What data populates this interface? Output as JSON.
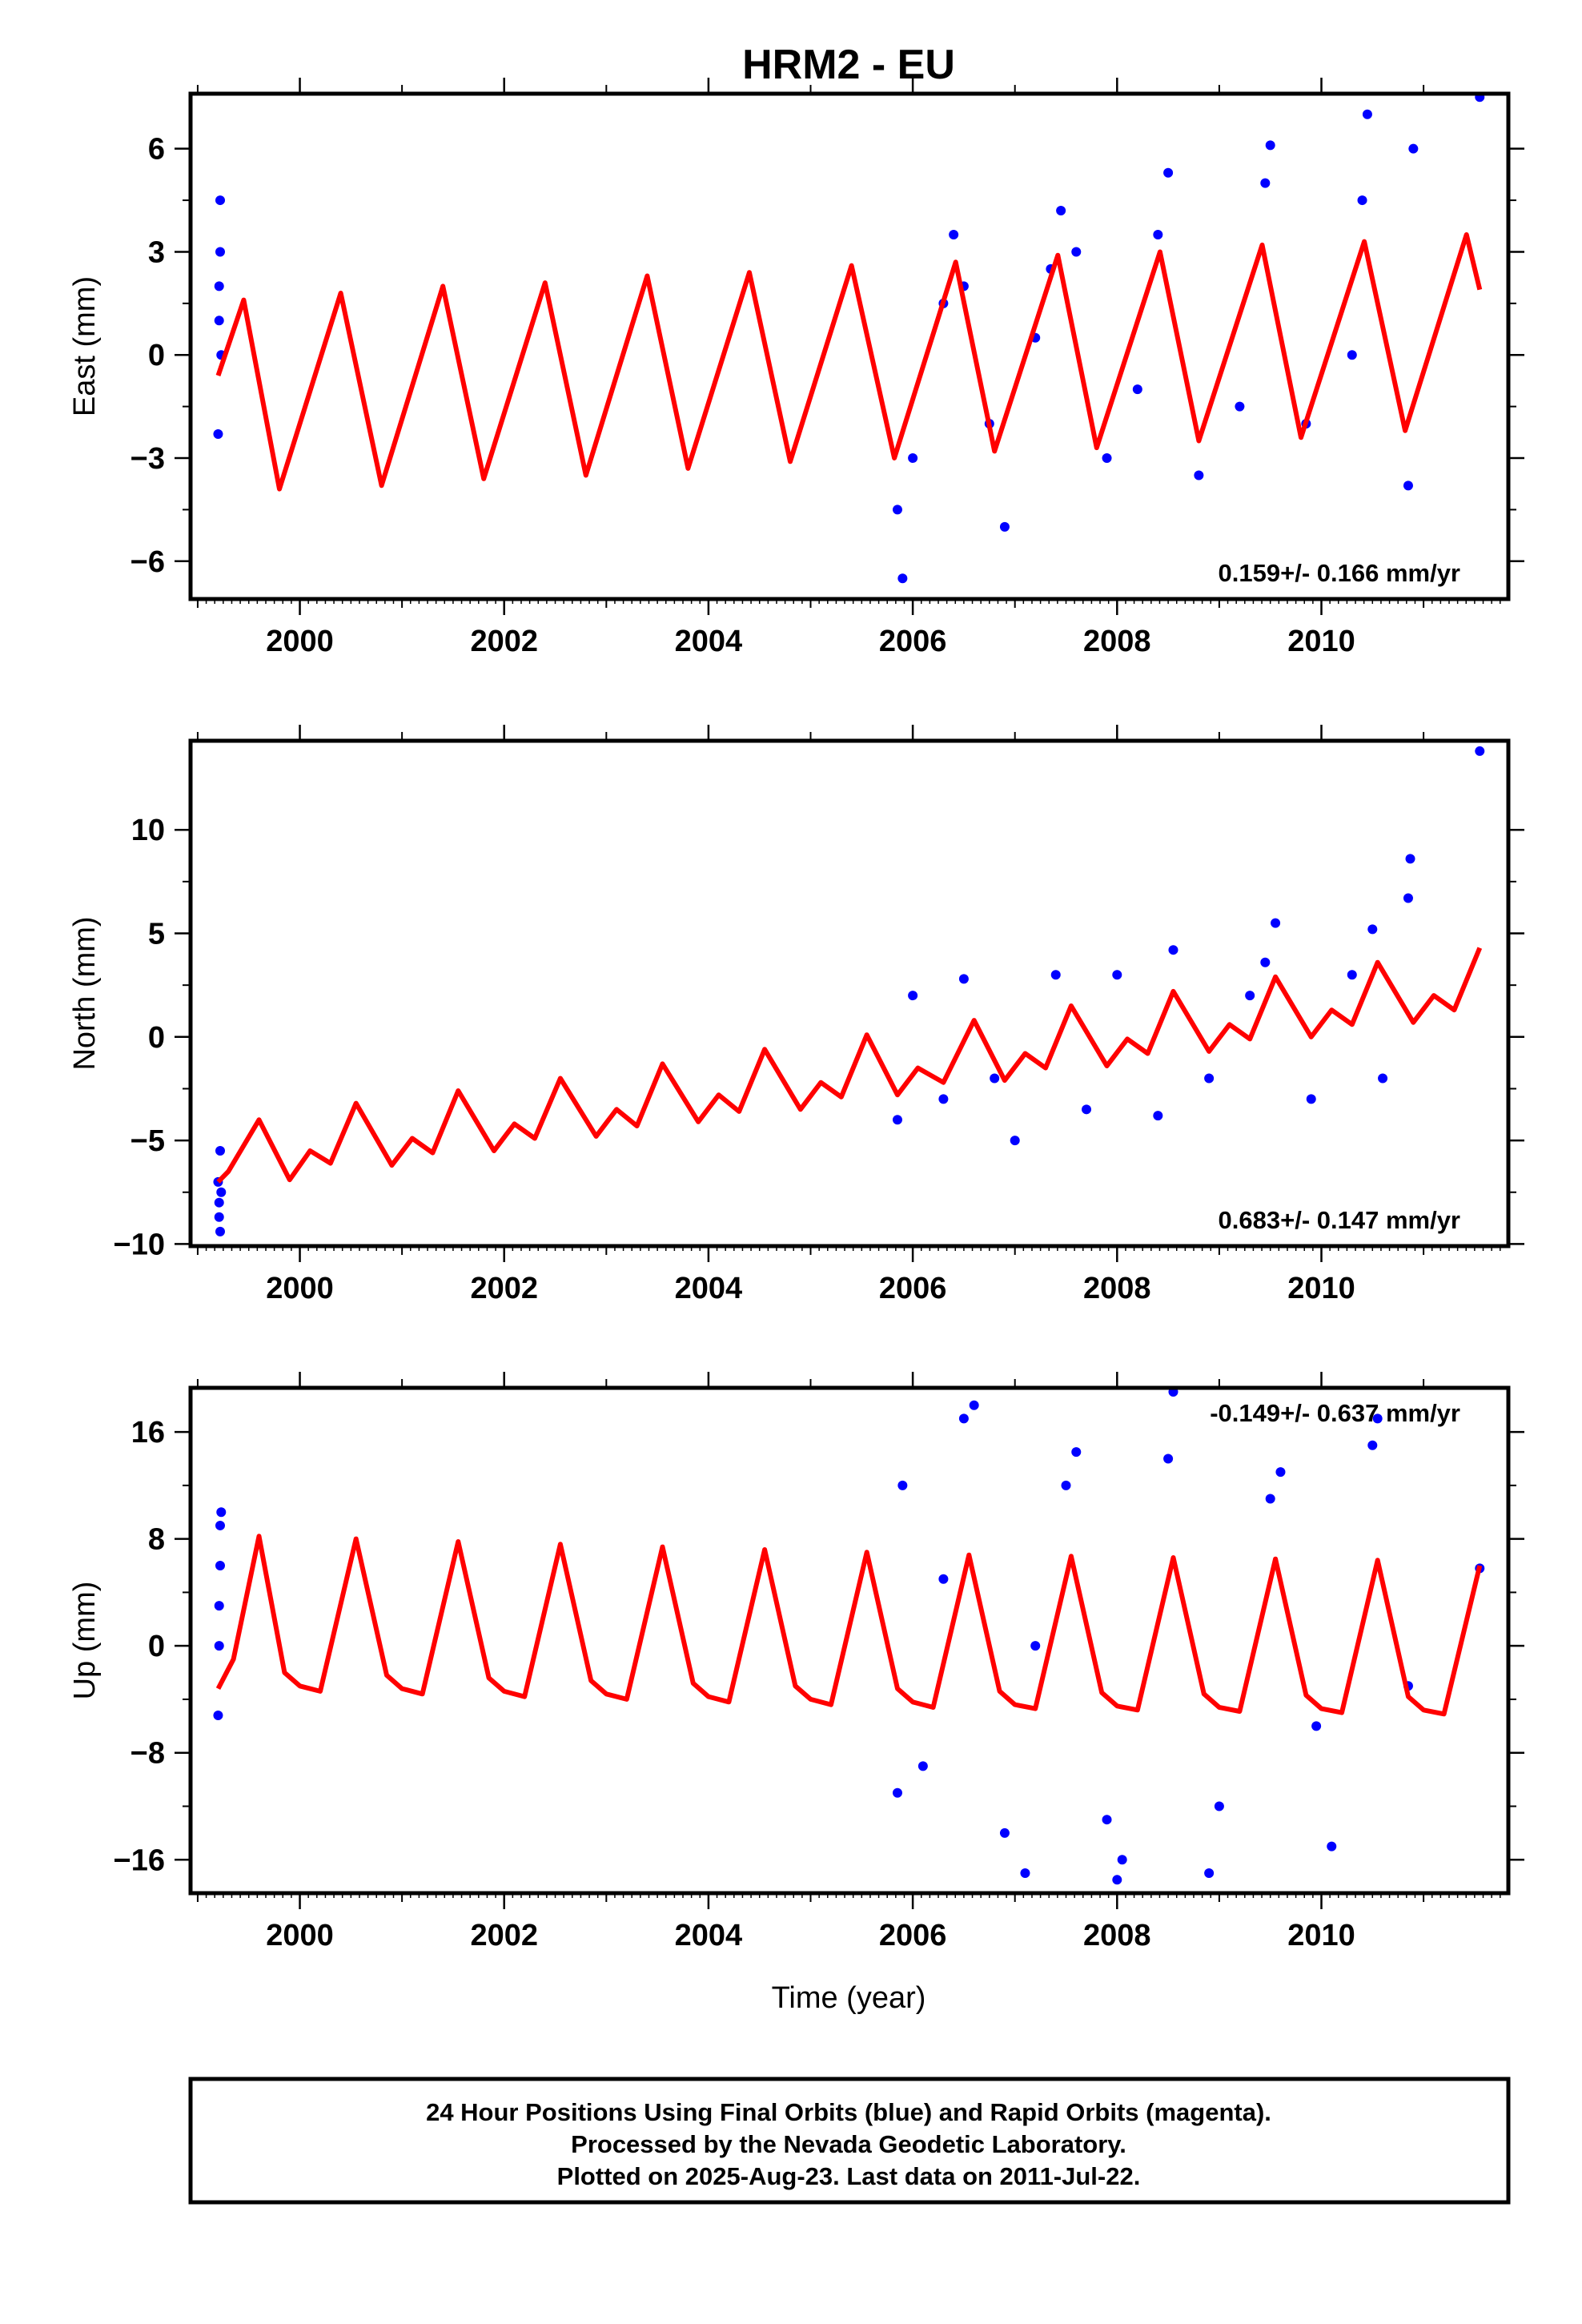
{
  "chart_data": {
    "type": "scatter",
    "title": "HRM2 - EU",
    "xlabel": "Time (year)",
    "xlim": [
      1998.93,
      2011.83
    ],
    "x_ticks": [
      2000,
      2002,
      2004,
      2006,
      2008,
      2010
    ],
    "point_color": "#0000ff",
    "model_color": "#ff0000",
    "footer_lines": [
      "24 Hour Positions Using Final Orbits (blue) and Rapid Orbits (magenta).",
      "Processed by the Nevada Geodetic Laboratory.",
      "Plotted on 2025-Aug-23. Last data on 2011-Jul-22."
    ],
    "panels": [
      {
        "id": "east",
        "ylabel": "East (mm)",
        "ylim": [
          -7.1,
          7.6
        ],
        "y_ticks": [
          -6,
          -3,
          0,
          3,
          6
        ],
        "y_tick_labels": [
          "−6",
          "−3",
          "0",
          "3",
          "6"
        ],
        "rate_label": "0.159+/- 0.166 mm/yr",
        "rate_position": "bottom-right",
        "series": [
          {
            "type": "scatter",
            "x": [
              1999.2,
              1999.21,
              1999.21,
              1999.22,
              1999.22,
              1999.23,
              2005.85,
              2005.9,
              2006.0,
              2006.3,
              2006.4,
              2006.5,
              2006.75,
              2006.9,
              2007.2,
              2007.35,
              2007.45,
              2007.6,
              2007.9,
              2008.2,
              2008.4,
              2008.5,
              2008.8,
              2009.2,
              2009.45,
              2009.5,
              2009.85,
              2010.3,
              2010.4,
              2010.45,
              2010.85,
              2010.9,
              2011.55
            ],
            "y": [
              -2.3,
              1.0,
              2.0,
              3.0,
              4.5,
              0.0,
              -4.5,
              -6.5,
              -3.0,
              1.5,
              3.5,
              2.0,
              -2.0,
              -5.0,
              0.5,
              2.5,
              4.2,
              3.0,
              -3.0,
              -1.0,
              3.5,
              5.3,
              -3.5,
              -1.5,
              5.0,
              6.1,
              -2.0,
              0.0,
              4.5,
              7.0,
              -3.8,
              6.0,
              7.5
            ]
          },
          {
            "type": "line",
            "x": [
              1999.2,
              1999.45,
              1999.8,
              2000.4,
              2000.8,
              2001.4,
              2001.8,
              2002.4,
              2002.8,
              2003.4,
              2003.8,
              2004.4,
              2004.8,
              2005.4,
              2005.82,
              2006.42,
              2006.8,
              2007.42,
              2007.8,
              2008.42,
              2008.8,
              2009.42,
              2009.8,
              2010.42,
              2010.82,
              2011.42,
              2011.55
            ],
            "y": [
              -0.6,
              1.6,
              -3.9,
              1.8,
              -3.8,
              2.0,
              -3.6,
              2.1,
              -3.5,
              2.3,
              -3.3,
              2.4,
              -3.1,
              2.6,
              -3.0,
              2.7,
              -2.8,
              2.9,
              -2.7,
              3.0,
              -2.5,
              3.2,
              -2.4,
              3.3,
              -2.2,
              3.5,
              1.9
            ]
          }
        ]
      },
      {
        "id": "north",
        "ylabel": "North (mm)",
        "ylim": [
          -10.1,
          14.3
        ],
        "y_ticks": [
          -10,
          -5,
          0,
          5,
          10
        ],
        "y_tick_labels": [
          "−10",
          "−5",
          "0",
          "5",
          "10"
        ],
        "rate_label": "0.683+/- 0.147 mm/yr",
        "rate_position": "bottom-right",
        "series": [
          {
            "type": "scatter",
            "x": [
              1999.2,
              1999.21,
              1999.21,
              1999.22,
              1999.22,
              1999.23,
              2005.85,
              2006.0,
              2006.3,
              2006.5,
              2006.8,
              2007.0,
              2007.4,
              2007.7,
              2008.0,
              2008.4,
              2008.55,
              2008.9,
              2009.3,
              2009.45,
              2009.55,
              2009.9,
              2010.3,
              2010.5,
              2010.6,
              2010.85,
              2010.87,
              2011.55
            ],
            "y": [
              -7.0,
              -8.0,
              -8.7,
              -9.4,
              -5.5,
              -7.5,
              -4.0,
              2.0,
              -3.0,
              2.8,
              -2.0,
              -5.0,
              3.0,
              -3.5,
              3.0,
              -3.8,
              4.2,
              -2.0,
              2.0,
              3.6,
              5.5,
              -3.0,
              3.0,
              5.2,
              -2.0,
              6.7,
              8.6,
              13.8
            ]
          },
          {
            "type": "line",
            "x": [
              1999.2,
              1999.3,
              1999.6,
              1999.9,
              2000.1,
              2000.3,
              2000.55,
              2000.9,
              2001.1,
              2001.3,
              2001.55,
              2001.9,
              2002.1,
              2002.3,
              2002.55,
              2002.9,
              2003.1,
              2003.3,
              2003.55,
              2003.9,
              2004.1,
              2004.3,
              2004.55,
              2004.9,
              2005.1,
              2005.3,
              2005.55,
              2005.85,
              2006.05,
              2006.3,
              2006.6,
              2006.9,
              2007.1,
              2007.3,
              2007.55,
              2007.9,
              2008.1,
              2008.3,
              2008.55,
              2008.9,
              2009.1,
              2009.3,
              2009.55,
              2009.9,
              2010.1,
              2010.3,
              2010.55,
              2010.9,
              2011.1,
              2011.3,
              2011.55
            ],
            "y": [
              -7.0,
              -6.5,
              -4.0,
              -6.9,
              -5.5,
              -6.1,
              -3.2,
              -6.2,
              -4.9,
              -5.6,
              -2.6,
              -5.5,
              -4.2,
              -4.9,
              -2.0,
              -4.8,
              -3.5,
              -4.3,
              -1.3,
              -4.1,
              -2.8,
              -3.6,
              -0.6,
              -3.5,
              -2.2,
              -2.9,
              0.1,
              -2.8,
              -1.5,
              -2.2,
              0.8,
              -2.1,
              -0.8,
              -1.5,
              1.5,
              -1.4,
              -0.1,
              -0.8,
              2.2,
              -0.7,
              0.6,
              -0.1,
              2.9,
              0.0,
              1.3,
              0.6,
              3.6,
              0.7,
              2.0,
              1.3,
              4.3
            ]
          }
        ]
      },
      {
        "id": "up",
        "ylabel": "Up (mm)",
        "ylim": [
          -18.5,
          19.3
        ],
        "y_ticks": [
          -16,
          -8,
          0,
          8,
          16
        ],
        "y_tick_labels": [
          "−16",
          "−8",
          "0",
          "8",
          "16"
        ],
        "rate_label": "-0.149+/- 0.637 mm/yr",
        "rate_position": "top-right",
        "series": [
          {
            "type": "scatter",
            "x": [
              1999.2,
              1999.21,
              1999.21,
              1999.22,
              1999.22,
              1999.23,
              2005.85,
              2005.9,
              2006.1,
              2006.3,
              2006.5,
              2006.6,
              2006.9,
              2007.1,
              2007.2,
              2007.5,
              2007.6,
              2007.9,
              2008.0,
              2008.05,
              2008.5,
              2008.55,
              2008.9,
              2009.0,
              2009.5,
              2009.6,
              2009.95,
              2010.1,
              2010.5,
              2010.55,
              2010.85,
              2011.55
            ],
            "y": [
              -5.2,
              0.0,
              3.0,
              6.0,
              9.0,
              10.0,
              -11.0,
              12.0,
              -9.0,
              5.0,
              17.0,
              18.0,
              -14.0,
              -17.0,
              0.0,
              12.0,
              14.5,
              -13.0,
              -17.5,
              -16.0,
              14.0,
              19.0,
              -17.0,
              -12.0,
              11.0,
              13.0,
              -6.0,
              -15.0,
              15.0,
              17.0,
              -3.0,
              5.8
            ]
          },
          {
            "type": "line",
            "x": [
              1999.2,
              1999.35,
              1999.6,
              1999.85,
              2000.0,
              2000.2,
              2000.55,
              2000.85,
              2001.0,
              2001.2,
              2001.55,
              2001.85,
              2002.0,
              2002.2,
              2002.55,
              2002.85,
              2003.0,
              2003.2,
              2003.55,
              2003.85,
              2004.0,
              2004.2,
              2004.55,
              2004.85,
              2005.0,
              2005.2,
              2005.55,
              2005.85,
              2006.0,
              2006.2,
              2006.55,
              2006.85,
              2007.0,
              2007.2,
              2007.55,
              2007.85,
              2008.0,
              2008.2,
              2008.55,
              2008.85,
              2009.0,
              2009.2,
              2009.55,
              2009.85,
              2010.0,
              2010.2,
              2010.55,
              2010.85,
              2011.0,
              2011.2,
              2011.55
            ],
            "y": [
              -3.2,
              -1.0,
              8.2,
              -2.0,
              -3.0,
              -3.4,
              8.0,
              -2.2,
              -3.2,
              -3.6,
              7.8,
              -2.4,
              -3.4,
              -3.8,
              7.6,
              -2.6,
              -3.6,
              -4.0,
              7.4,
              -2.8,
              -3.8,
              -4.2,
              7.2,
              -3.0,
              -4.0,
              -4.4,
              7.0,
              -3.2,
              -4.2,
              -4.6,
              6.8,
              -3.4,
              -4.4,
              -4.7,
              6.7,
              -3.5,
              -4.5,
              -4.8,
              6.6,
              -3.6,
              -4.6,
              -4.9,
              6.5,
              -3.7,
              -4.7,
              -5.0,
              6.4,
              -3.8,
              -4.8,
              -5.1,
              6.0
            ]
          }
        ]
      }
    ]
  }
}
